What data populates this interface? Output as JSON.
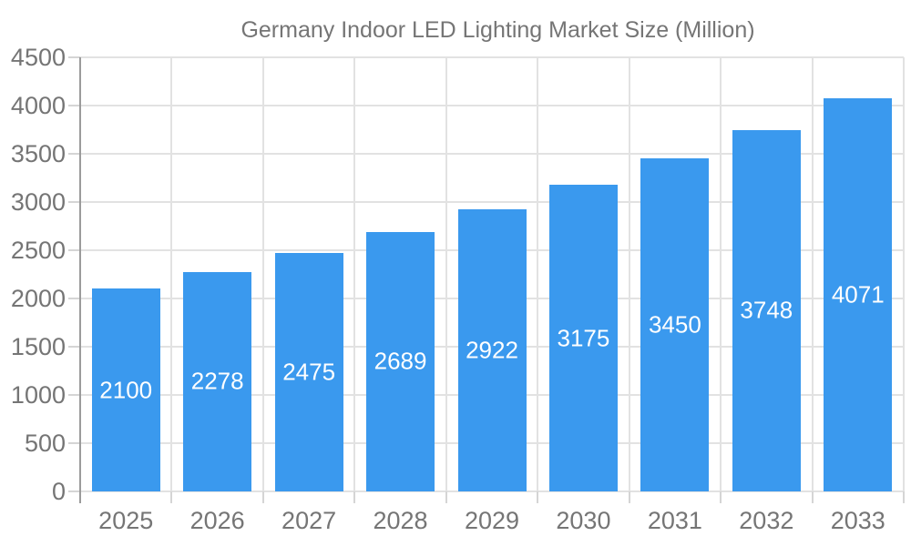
{
  "legend": {
    "label": "Germany Indoor LED Lighting Market Size (Million)"
  },
  "chart_data": {
    "type": "bar",
    "title": "Germany Indoor LED Lighting Market Size (Million)",
    "series_name": "Germany Indoor LED Lighting Market Size (Million)",
    "categories": [
      "2025",
      "2026",
      "2027",
      "2028",
      "2029",
      "2030",
      "2031",
      "2032",
      "2033"
    ],
    "values": [
      2100,
      2278,
      2475,
      2689,
      2922,
      3175,
      3450,
      3748,
      4071
    ],
    "xlabel": "",
    "ylabel": "",
    "ylim": [
      0,
      4500
    ],
    "ytick_step": 500,
    "y_ticks": [
      0,
      500,
      1000,
      1500,
      2000,
      2500,
      3000,
      3500,
      4000,
      4500
    ],
    "grid": true,
    "legend_position": "top-center",
    "value_labels": "inside-middle",
    "colors": {
      "bar": "#3a99ee",
      "bar_value_text": "#ffffff",
      "axis_text": "#757575",
      "grid_line": "#e2e2e2",
      "tick_line": "#d5d5d5",
      "axis_line": "#9b9b9b",
      "background": "#ffffff"
    }
  }
}
